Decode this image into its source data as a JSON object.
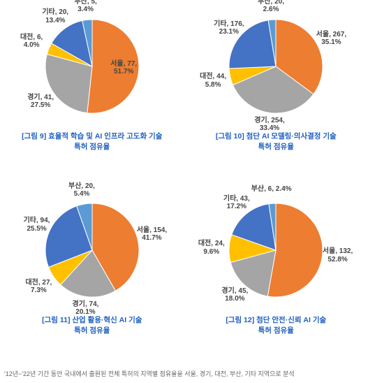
{
  "footnote": "'12년~'22년 기간 동안 국내에서 출원된 전체 특허의 지역별 점유율을 서울, 경기, 대전, 부산, 기타 지역으로 분석",
  "label_fontsize": 10,
  "label_fontweight": "bold",
  "charts": [
    {
      "type": "pie",
      "caption_line1": "[그림 9] 효율적 학습 및 AI 인프라 고도화 기술",
      "caption_line2": "특허 점유율",
      "caption_color": "#1f5fbf",
      "radius": 67,
      "slices": [
        {
          "name": "서울",
          "value": 77,
          "pct": 51.7,
          "color": "#ed7d31",
          "label": "서울, 77,\n51.7%",
          "label_color": "#444",
          "label_offset": 0.68
        },
        {
          "name": "경기",
          "value": 41,
          "pct": 27.5,
          "color": "#a5a5a5",
          "label": "경기, 41,\n27.5%",
          "label_color": "#444",
          "label_offset": 1.33
        },
        {
          "name": "대전",
          "value": 6,
          "pct": 4.0,
          "color": "#ffc000",
          "label": "대전, 6,\n4.0%",
          "label_color": "#444",
          "label_offset": 1.4
        },
        {
          "name": "기타",
          "value": 20,
          "pct": 13.4,
          "color": "#4472c4",
          "label": "기타, 20,\n13.4%",
          "label_color": "#444",
          "label_offset": 1.32
        },
        {
          "name": "부산",
          "value": 5,
          "pct": 3.4,
          "color": "#5b9bd5",
          "label": "부산, 5,\n3.4%",
          "label_color": "#444",
          "label_offset": 1.3
        }
      ]
    },
    {
      "type": "pie",
      "caption_line1": "[그림 10] 첨단 AI 모델링·의사결정 기술",
      "caption_line2": "특허 점유율",
      "caption_color": "#1f5fbf",
      "radius": 67,
      "slices": [
        {
          "name": "서울",
          "value": 267,
          "pct": 35.1,
          "color": "#ed7d31",
          "label": "서울, 267,\n35.1%",
          "label_color": "#444",
          "label_offset": 1.32
        },
        {
          "name": "경기",
          "value": 254,
          "pct": 33.4,
          "color": "#a5a5a5",
          "label": "경기, 254,\n33.4%",
          "label_color": "#444",
          "label_offset": 1.25
        },
        {
          "name": "대전",
          "value": 44,
          "pct": 5.8,
          "color": "#ffc000",
          "label": "대전, 44,\n5.8%",
          "label_color": "#444",
          "label_offset": 1.38
        },
        {
          "name": "기타",
          "value": 176,
          "pct": 23.1,
          "color": "#4472c4",
          "label": "기타, 176,\n23.1%",
          "label_color": "#444",
          "label_offset": 1.3
        },
        {
          "name": "부산",
          "value": 20,
          "pct": 2.6,
          "color": "#5b9bd5",
          "label": "부산, 20,\n2.6%",
          "label_color": "#444",
          "label_offset": 1.3
        }
      ]
    },
    {
      "type": "pie",
      "caption_line1": "[그림 11] 산업 활용·혁신 AI 기술",
      "caption_line2": "특허 점유율",
      "caption_color": "#1f5fbf",
      "radius": 67,
      "slices": [
        {
          "name": "서울",
          "value": 154,
          "pct": 41.7,
          "color": "#ed7d31",
          "label": "서울, 154,\n41.7%",
          "label_color": "#444",
          "label_offset": 1.32
        },
        {
          "name": "경기",
          "value": 74,
          "pct": 20.1,
          "color": "#a5a5a5",
          "label": "경기, 74,\n20.1%",
          "label_color": "#444",
          "label_offset": 1.25
        },
        {
          "name": "대전",
          "value": 27,
          "pct": 7.3,
          "color": "#ffc000",
          "label": "대전, 27,\n7.3%",
          "label_color": "#444",
          "label_offset": 1.38
        },
        {
          "name": "기타",
          "value": 94,
          "pct": 25.5,
          "color": "#4472c4",
          "label": "기타, 94,\n25.5%",
          "label_color": "#444",
          "label_offset": 1.3
        },
        {
          "name": "부산",
          "value": 20,
          "pct": 5.4,
          "color": "#5b9bd5",
          "label": "부산, 20,\n5.4%",
          "label_color": "#444",
          "label_offset": 1.3
        }
      ]
    },
    {
      "type": "pie",
      "caption_line1": "[그림 12] 첨단 안전·신뢰 AI 기술",
      "caption_line2": "특허 점유율",
      "caption_color": "#1f5fbf",
      "radius": 67,
      "slices": [
        {
          "name": "서울",
          "value": 132,
          "pct": 52.8,
          "color": "#ed7d31",
          "label": "서울, 132,\n52.8%",
          "label_color": "#444",
          "label_offset": 1.32
        },
        {
          "name": "경기",
          "value": 45,
          "pct": 18.0,
          "color": "#a5a5a5",
          "label": "경기, 45,\n18.0%",
          "label_color": "#444",
          "label_offset": 1.3
        },
        {
          "name": "대전",
          "value": 24,
          "pct": 9.6,
          "color": "#ffc000",
          "label": "대전, 24,\n9.6%",
          "label_color": "#444",
          "label_offset": 1.38
        },
        {
          "name": "기타",
          "value": 43,
          "pct": 17.2,
          "color": "#4472c4",
          "label": "기타, 43,\n17.2%",
          "label_color": "#444",
          "label_offset": 1.32
        },
        {
          "name": "부산",
          "value": 6,
          "pct": 2.4,
          "color": "#5b9bd5",
          "label": "부산, 6, 2.4%",
          "label_color": "#444",
          "label_offset": 1.3
        }
      ]
    }
  ]
}
